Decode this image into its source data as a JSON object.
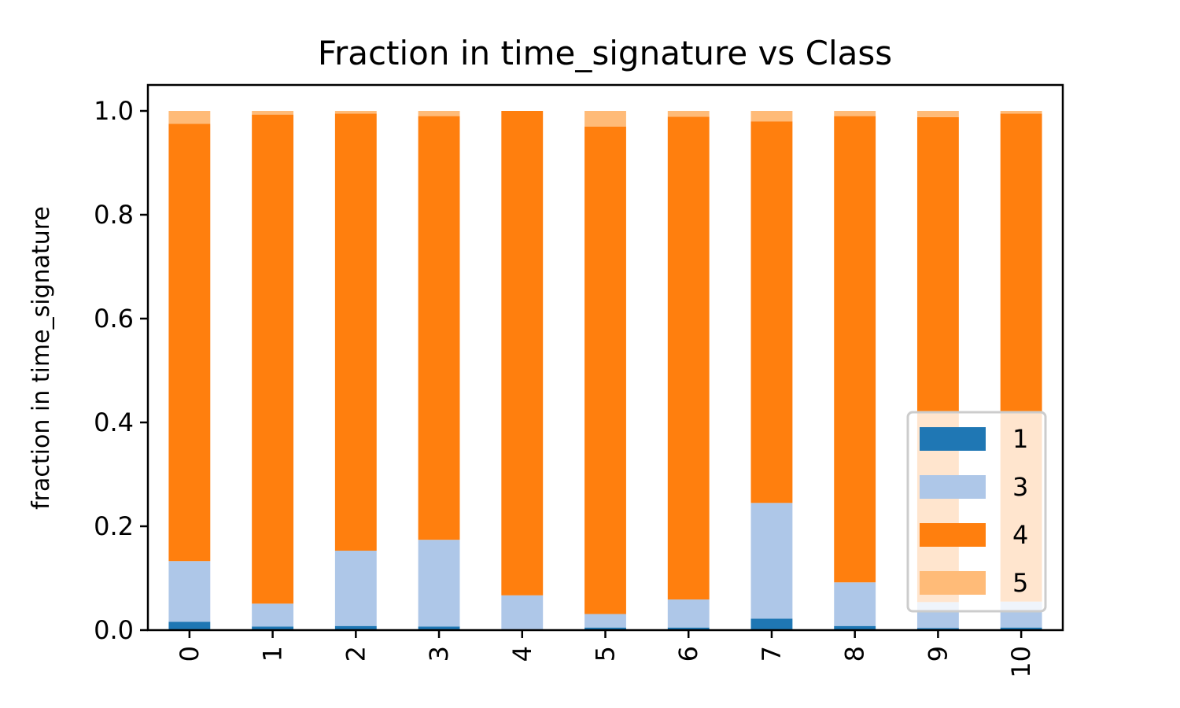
{
  "chart_data": {
    "type": "bar",
    "stacked": true,
    "title": "Fraction in time_signature vs Class",
    "xlabel": "",
    "ylabel": "fraction in time_signature",
    "ylim": [
      0,
      1.05
    ],
    "yticks": [
      "0.0",
      "0.2",
      "0.4",
      "0.6",
      "0.8",
      "1.0"
    ],
    "categories": [
      "0",
      "1",
      "2",
      "3",
      "4",
      "5",
      "6",
      "7",
      "8",
      "9",
      "10"
    ],
    "series": [
      {
        "name": "1",
        "color": "#1f77b4",
        "values": [
          0.016,
          0.007,
          0.008,
          0.007,
          0.0,
          0.005,
          0.005,
          0.022,
          0.008,
          0.004,
          0.005
        ]
      },
      {
        "name": "3",
        "color": "#aec7e8",
        "values": [
          0.117,
          0.044,
          0.145,
          0.167,
          0.067,
          0.026,
          0.054,
          0.223,
          0.084,
          0.05,
          0.05
        ]
      },
      {
        "name": "4",
        "color": "#ff7f0e",
        "values": [
          0.842,
          0.942,
          0.842,
          0.816,
          0.933,
          0.939,
          0.93,
          0.735,
          0.898,
          0.934,
          0.94
        ]
      },
      {
        "name": "5",
        "color": "#ffbb78",
        "values": [
          0.025,
          0.007,
          0.005,
          0.01,
          0.0,
          0.03,
          0.011,
          0.02,
          0.01,
          0.012,
          0.005
        ]
      }
    ],
    "grid": false,
    "legend_position": "lower-right"
  }
}
